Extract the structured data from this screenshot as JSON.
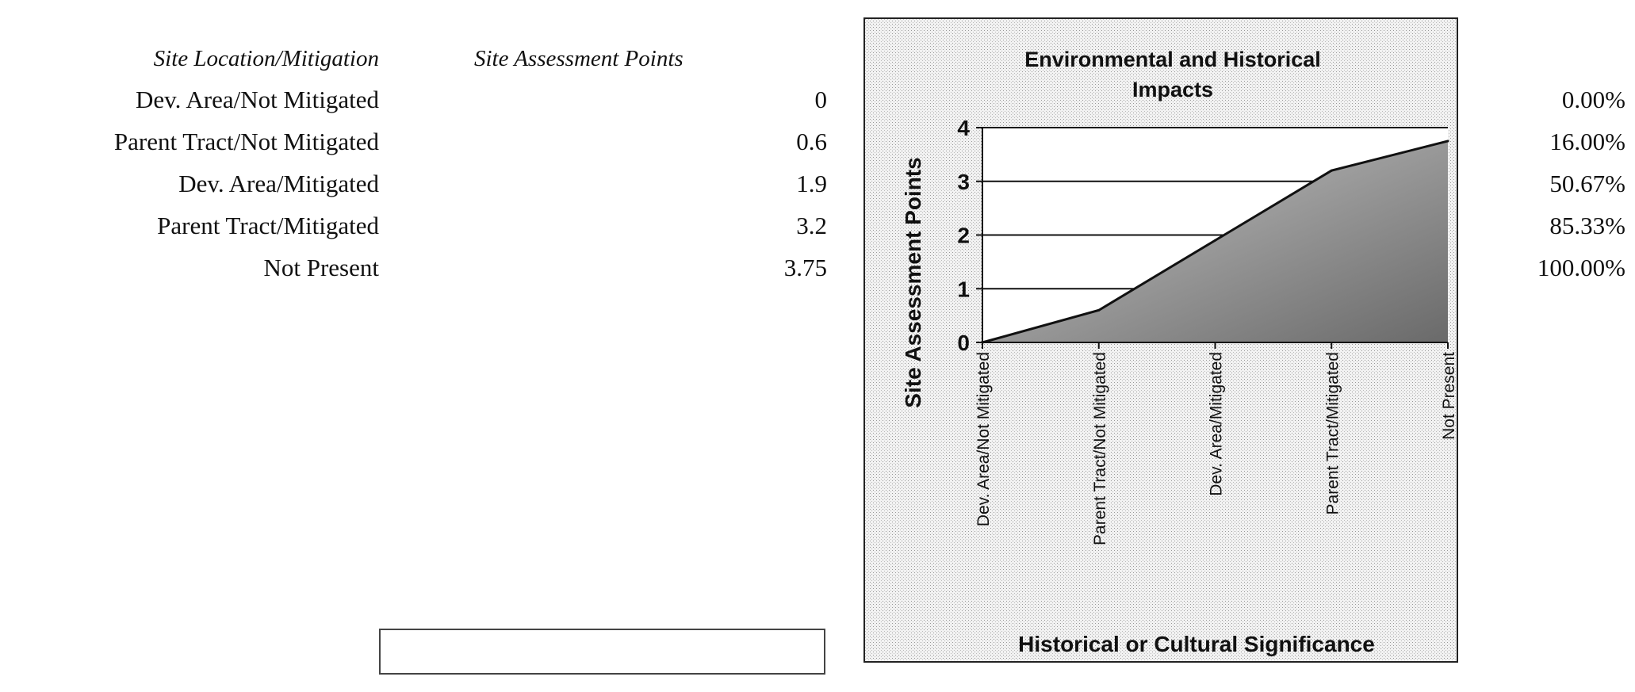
{
  "table": {
    "headers": [
      "Site Location/Mitigation",
      "Site Assessment Points"
    ],
    "rows": [
      {
        "label": "Dev. Area/Not Mitigated",
        "value": "0"
      },
      {
        "label": "Parent Tract/Not Mitigated",
        "value": "0.6"
      },
      {
        "label": "Dev. Area/Mitigated",
        "value": "1.9"
      },
      {
        "label": "Parent Tract/Mitigated",
        "value": "3.2"
      },
      {
        "label": "Not Present",
        "value": "3.75"
      }
    ]
  },
  "percentages": [
    "0.00%",
    "16.00%",
    "50.67%",
    "85.33%",
    "100.00%"
  ],
  "chart_data": {
    "type": "area",
    "title": "Environmental and Historical Impacts",
    "title_lines": [
      "Environmental and Historical",
      "Impacts"
    ],
    "xlabel": "Historical or Cultural Significance",
    "ylabel": "Site Assessment Points",
    "categories": [
      "Dev. Area/Not Mitigated",
      "Parent Tract/Not Mitigated",
      "Dev. Area/Mitigated",
      "Parent Tract/Mitigated",
      "Not Present"
    ],
    "values": [
      0,
      0.6,
      1.9,
      3.2,
      3.75
    ],
    "ylim": [
      0,
      4
    ],
    "yticks": [
      "0",
      "1",
      "2",
      "3",
      "4"
    ],
    "grid": true,
    "legend": "none",
    "colors": {
      "fill": "#8a8a8a",
      "line": "#111111",
      "background": "#e8e8e8"
    }
  }
}
